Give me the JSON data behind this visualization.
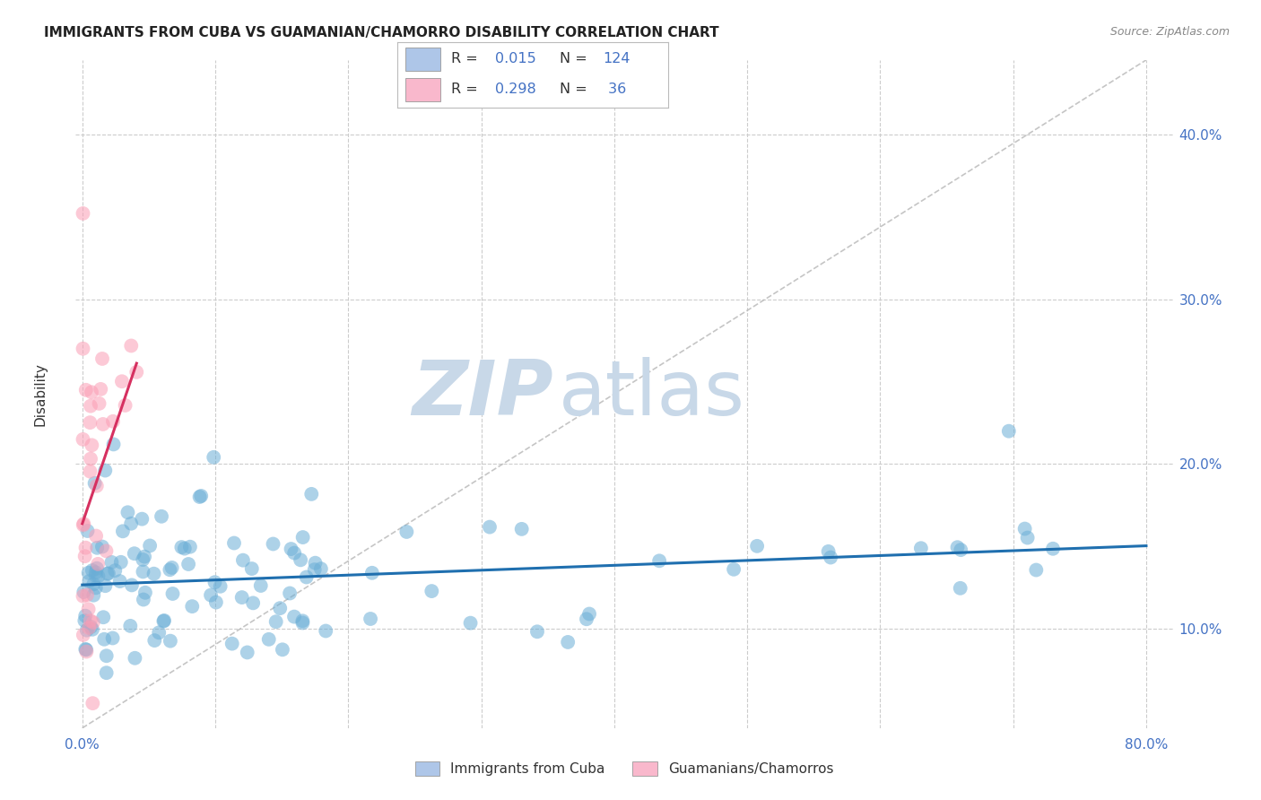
{
  "title": "IMMIGRANTS FROM CUBA VS GUAMANIAN/CHAMORRO DISABILITY CORRELATION CHART",
  "source": "Source: ZipAtlas.com",
  "ylabel": "Disability",
  "xlim": [
    -0.005,
    0.82
  ],
  "ylim": [
    0.04,
    0.445
  ],
  "yticks_right": [
    0.1,
    0.2,
    0.3,
    0.4
  ],
  "ytick_labels_right": [
    "10.0%",
    "20.0%",
    "30.0%",
    "40.0%"
  ],
  "blue_color": "#6baed6",
  "pink_color": "#fb9eb5",
  "blue_line_color": "#1f6faf",
  "pink_line_color": "#d63060",
  "tick_color": "#4472c4",
  "blue_R": 0.015,
  "blue_N": 124,
  "pink_R": 0.298,
  "pink_N": 36,
  "watermark_zip": "ZIP",
  "watermark_atlas": "atlas",
  "watermark_color": "#c8d8e8",
  "background_color": "#ffffff",
  "grid_color": "#cccccc",
  "title_fontsize": 11,
  "tick_fontsize": 11,
  "source_fontsize": 9,
  "legend_label1": "Immigrants from Cuba",
  "legend_label2": "Guamanians/Chamorros"
}
